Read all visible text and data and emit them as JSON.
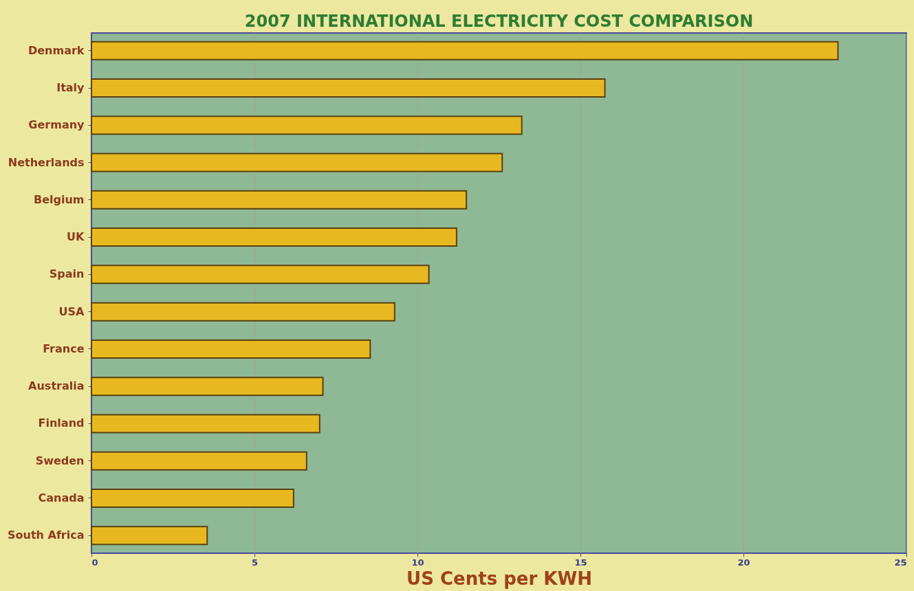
{
  "chart_data": {
    "type": "bar",
    "orientation": "horizontal",
    "title": "2007 INTERNATIONAL ELECTRICITY COST  COMPARISON",
    "xlabel": "US Cents per KWH",
    "categories": [
      "Denmark",
      "Italy",
      "Germany",
      "Netherlands",
      "Belgium",
      "UK",
      "Spain",
      "USA",
      "France",
      "Australia",
      "Finland",
      "Sweden",
      "Canada",
      "South Africa"
    ],
    "values": [
      22.9,
      15.75,
      13.2,
      12.6,
      11.5,
      11.2,
      10.35,
      9.3,
      8.55,
      7.1,
      7.0,
      6.6,
      6.2,
      3.55
    ],
    "color": "#e8b820",
    "xlim": [
      0,
      25
    ],
    "xticks": [
      0,
      5,
      10,
      15,
      20,
      25
    ],
    "grid": "x"
  }
}
